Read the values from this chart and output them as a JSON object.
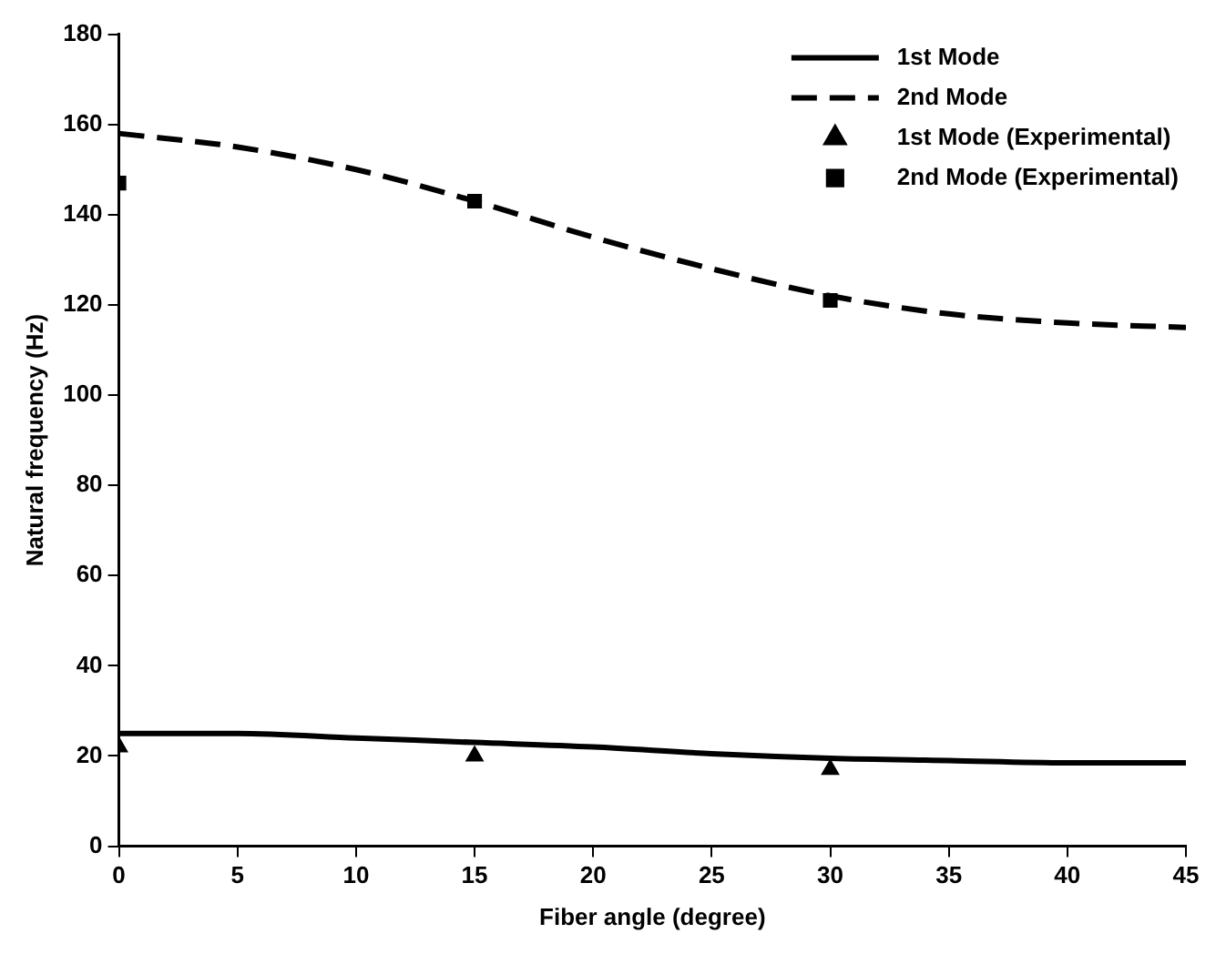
{
  "chart_data": {
    "type": "line",
    "xlabel": "Fiber angle (degree)",
    "ylabel": "Natural frequency (Hz)",
    "xlim": [
      0,
      45
    ],
    "xticks": [
      0,
      5,
      10,
      15,
      20,
      25,
      30,
      35,
      40,
      45
    ],
    "ylim": [
      0,
      180
    ],
    "yticks": [
      0,
      20,
      40,
      60,
      80,
      100,
      120,
      140,
      160,
      180
    ],
    "grid": false,
    "legend": "top right",
    "series": [
      {
        "name": "1st Mode",
        "line_style": "solid",
        "marker": "none",
        "color": "#000000",
        "x": [
          0,
          5,
          10,
          15,
          20,
          25,
          30,
          35,
          40,
          45
        ],
        "values": [
          25,
          25,
          24,
          23,
          22,
          20.5,
          19.5,
          19,
          18.5,
          18.5
        ]
      },
      {
        "name": "2nd Mode",
        "line_style": "dashed",
        "marker": "none",
        "color": "#000000",
        "x": [
          0,
          5,
          10,
          15,
          20,
          25,
          30,
          35,
          40,
          45
        ],
        "values": [
          158,
          155,
          150,
          143,
          135,
          128,
          122,
          118,
          116,
          115
        ]
      },
      {
        "name": "1st Mode (Experimental)",
        "type": "scatter",
        "marker": "triangle",
        "color": "#000000",
        "x": [
          0,
          15,
          30
        ],
        "values": [
          22,
          20,
          17
        ]
      },
      {
        "name": "2nd Mode (Experimental)",
        "type": "scatter",
        "marker": "square",
        "color": "#000000",
        "x": [
          0,
          15,
          30
        ],
        "values": [
          147,
          143,
          121
        ]
      }
    ]
  }
}
